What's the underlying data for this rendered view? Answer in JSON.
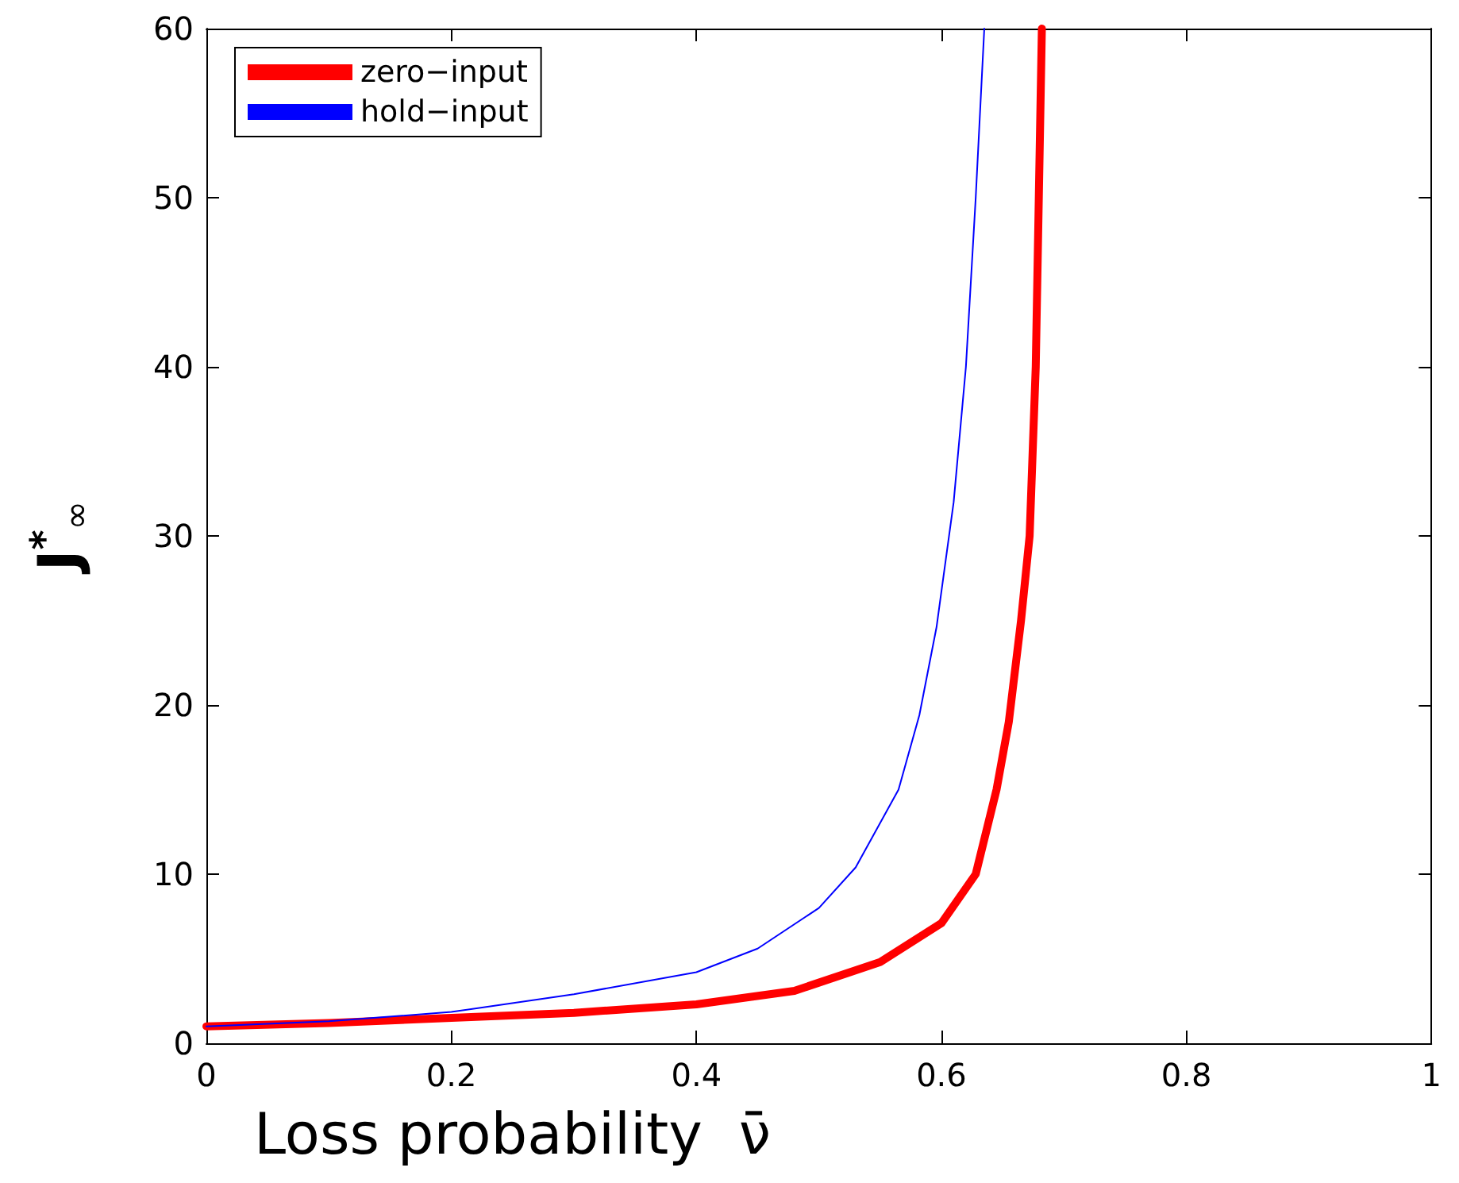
{
  "chart_data": {
    "type": "line",
    "xlabel": "Loss probability  ν̄",
    "ylabel": "J$^{*}$$_{∞}$",
    "xlim": [
      0,
      1
    ],
    "xticks": [
      0,
      0.2,
      0.4,
      0.6,
      0.8,
      1
    ],
    "ylim": [
      0,
      60
    ],
    "yticks": [
      0,
      10,
      20,
      30,
      40,
      50,
      60
    ],
    "grid": false,
    "legend": "top left",
    "marker": "none",
    "line_style": "solid",
    "series": [
      {
        "name": "zero−input",
        "color": "#ff0000",
        "x": [
          0,
          0.1,
          0.2,
          0.3,
          0.4,
          0.48,
          0.55,
          0.6,
          0.628,
          0.645,
          0.655,
          0.665,
          0.672,
          0.677,
          0.682
        ],
        "values": [
          1.0,
          1.2,
          1.5,
          1.8,
          2.3,
          3.1,
          4.8,
          7.1,
          10,
          15,
          19,
          25,
          30,
          40,
          60
        ]
      },
      {
        "name": "hold−input",
        "color": "#0000ff",
        "x": [
          0,
          0.1,
          0.2,
          0.3,
          0.4,
          0.45,
          0.5,
          0.53,
          0.565,
          0.582,
          0.596,
          0.61,
          0.62,
          0.628,
          0.635
        ],
        "values": [
          1.0,
          1.3,
          1.85,
          2.9,
          4.2,
          5.6,
          8.0,
          10.4,
          15,
          19.4,
          24.6,
          32,
          40,
          50,
          60
        ]
      }
    ]
  }
}
